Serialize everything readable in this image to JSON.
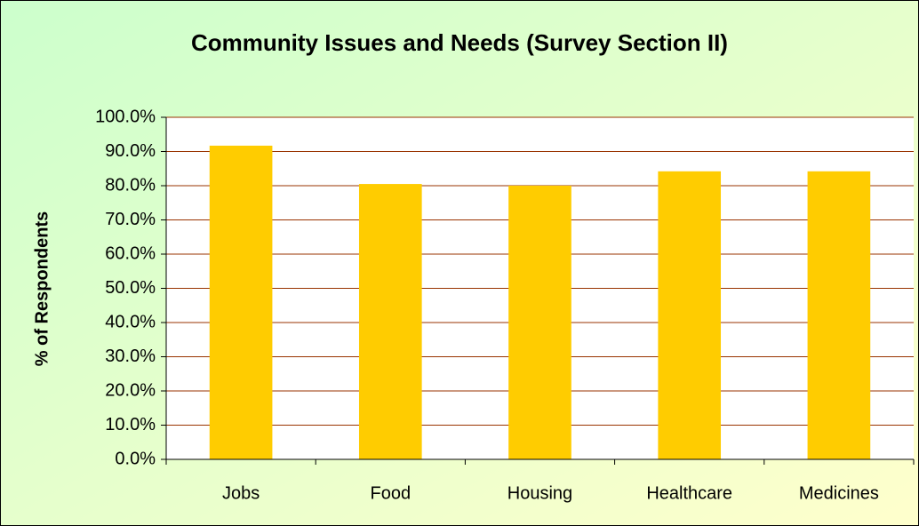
{
  "chart_data": {
    "type": "bar",
    "title": "Community Issues and Needs (Survey Section II)",
    "y_label": "% of Respondents",
    "categories": [
      "Jobs",
      "Food",
      "Housing",
      "Healthcare",
      "Medicines"
    ],
    "values": [
      91.7,
      80.5,
      80.0,
      84.2,
      84.2
    ],
    "color": "#ffcc00",
    "ylim": [
      0,
      100
    ],
    "yticks": [
      {
        "value": 0,
        "label": "0.0%"
      },
      {
        "value": 10,
        "label": "10.0%"
      },
      {
        "value": 20,
        "label": "20.0%"
      },
      {
        "value": 30,
        "label": "30.0%"
      },
      {
        "value": 40,
        "label": "40.0%"
      },
      {
        "value": 50,
        "label": "50.0%"
      },
      {
        "value": 60,
        "label": "60.0%"
      },
      {
        "value": 70,
        "label": "70.0%"
      },
      {
        "value": 80,
        "label": "80.0%"
      },
      {
        "value": 90,
        "label": "90.0%"
      },
      {
        "value": 100,
        "label": "100.0%"
      }
    ],
    "grid": true
  }
}
